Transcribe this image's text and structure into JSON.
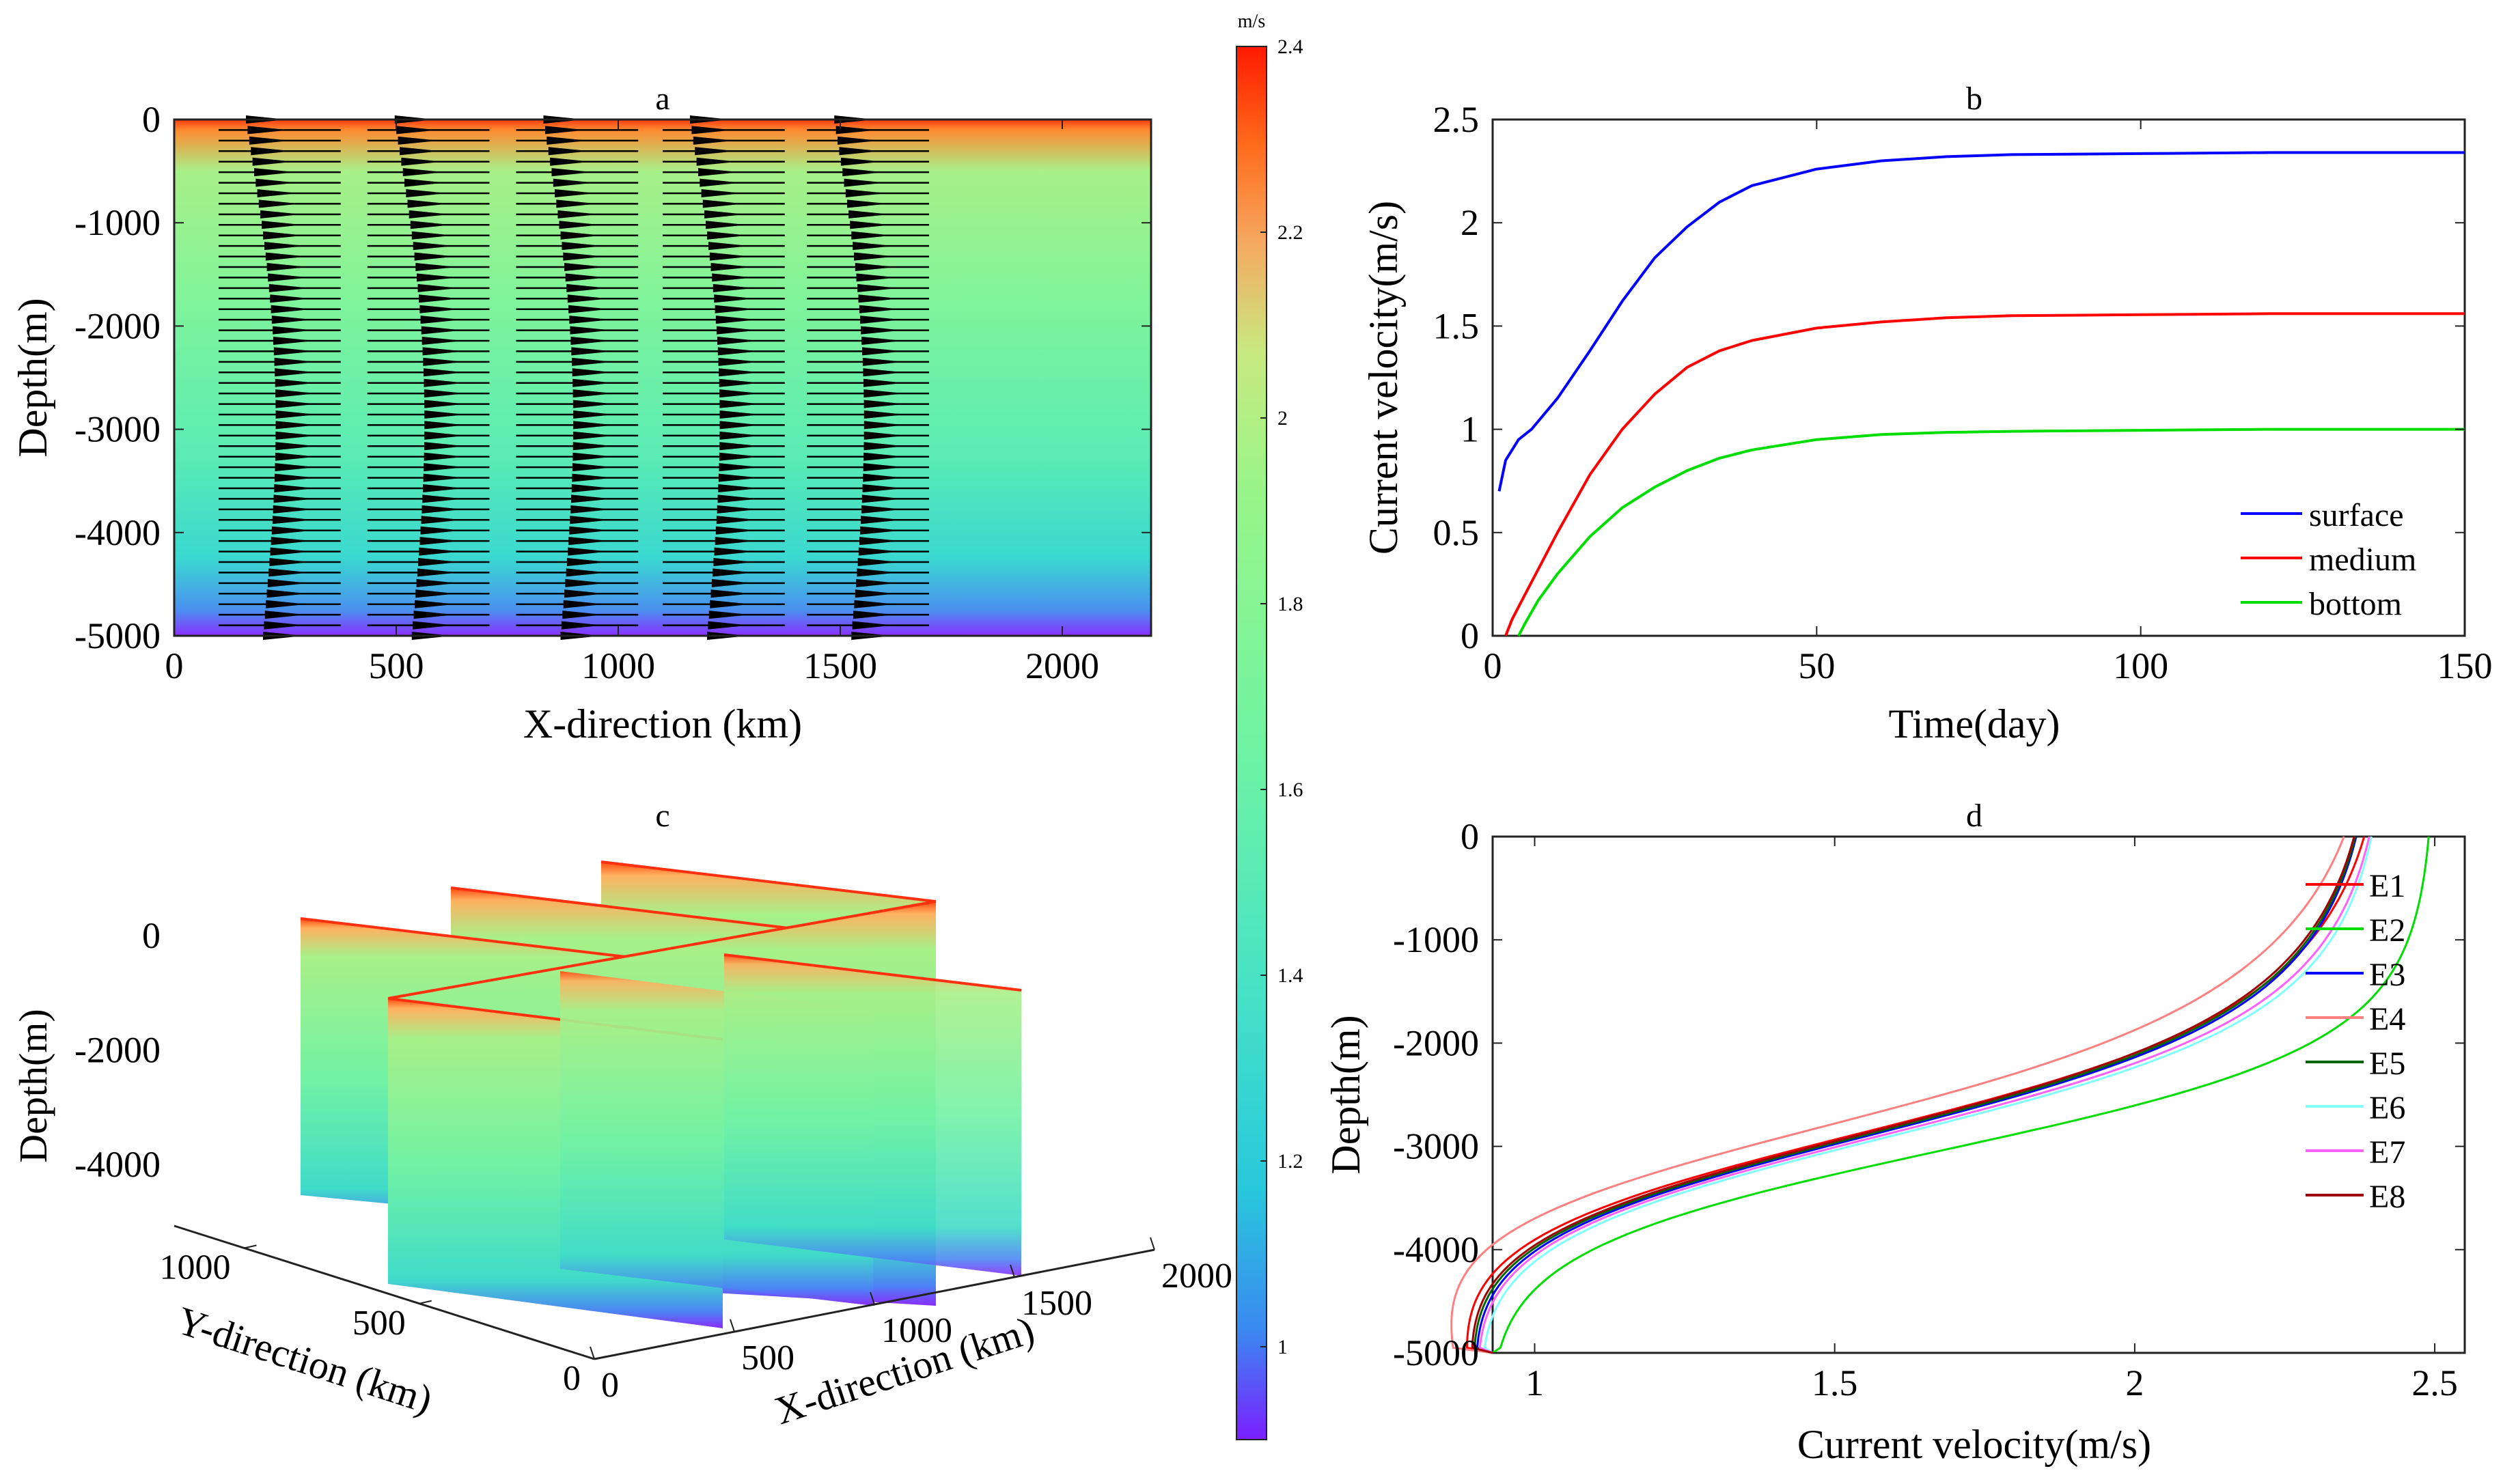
{
  "colorbar": {
    "unit": "m/s",
    "min": 0.9,
    "max": 2.4,
    "ticks": [
      1,
      1.2,
      1.4,
      1.6,
      1.8,
      2,
      2.2,
      2.4
    ],
    "tick_labels": [
      "1",
      "1.2",
      "1.4",
      "1.6",
      "1.8",
      "2",
      "2.2",
      "2.4"
    ]
  },
  "chart_data": [
    {
      "id": "a",
      "type": "heatmap",
      "title": "a",
      "xlabel": "X-direction (km)",
      "ylabel": "Depth(m)",
      "xlim": [
        0,
        2200
      ],
      "ylim": [
        -5000,
        0
      ],
      "xticks": [
        0,
        500,
        1000,
        1500,
        2000
      ],
      "xtick_labels": [
        "0",
        "500",
        "1000",
        "1500",
        "2000"
      ],
      "yticks": [
        0,
        -1000,
        -2000,
        -3000,
        -4000,
        -5000
      ],
      "ytick_labels": [
        "0",
        "-1000",
        "-2000",
        "-3000",
        "-4000",
        "-5000"
      ],
      "field": "current velocity (m/s) vs depth",
      "profile_depths": [
        0,
        -250,
        -500,
        -1000,
        -1500,
        -2000,
        -2500,
        -3000,
        -3500,
        -4000,
        -4500,
        -4750,
        -5000
      ],
      "profile_values": [
        2.4,
        2.05,
        1.85,
        1.75,
        1.7,
        1.66,
        1.62,
        1.56,
        1.5,
        1.42,
        1.32,
        1.2,
        0.92
      ],
      "arrow_columns_x": [
        100,
        435,
        770,
        1100,
        1425
      ],
      "arrow_column_length_km": 275,
      "arrow_count_per_column": 50
    },
    {
      "id": "b",
      "type": "line",
      "title": "b",
      "xlabel": "Time(day)",
      "ylabel": "Current velocity(m/s)",
      "xlim": [
        0,
        150
      ],
      "ylim": [
        0,
        2.5
      ],
      "xticks": [
        0,
        50,
        100,
        150
      ],
      "xtick_labels": [
        "0",
        "50",
        "100",
        "150"
      ],
      "yticks": [
        0,
        0.5,
        1,
        1.5,
        2,
        2.5
      ],
      "ytick_labels": [
        "0",
        "0.5",
        "1",
        "1.5",
        "2",
        "2.5"
      ],
      "legend_position": "bottom-right",
      "series": [
        {
          "name": "surface",
          "color": "#0000ff",
          "x": [
            1,
            2,
            4,
            6,
            10,
            15,
            20,
            25,
            30,
            35,
            40,
            50,
            60,
            70,
            80,
            100,
            120,
            150
          ],
          "values": [
            0.7,
            0.85,
            0.95,
            1.0,
            1.15,
            1.38,
            1.62,
            1.83,
            1.98,
            2.1,
            2.18,
            2.26,
            2.3,
            2.32,
            2.33,
            2.335,
            2.34,
            2.34
          ]
        },
        {
          "name": "medium",
          "color": "#ff0000",
          "x": [
            2,
            3,
            5,
            10,
            15,
            20,
            25,
            30,
            35,
            40,
            50,
            60,
            70,
            80,
            100,
            120,
            150
          ],
          "values": [
            0,
            0.08,
            0.2,
            0.5,
            0.78,
            1.0,
            1.17,
            1.3,
            1.38,
            1.43,
            1.49,
            1.52,
            1.54,
            1.55,
            1.555,
            1.56,
            1.56
          ]
        },
        {
          "name": "bottom",
          "color": "#00dd00",
          "x": [
            4,
            5,
            7,
            10,
            15,
            20,
            25,
            30,
            35,
            40,
            50,
            60,
            70,
            80,
            100,
            120,
            150
          ],
          "values": [
            0,
            0.06,
            0.17,
            0.3,
            0.48,
            0.62,
            0.72,
            0.8,
            0.86,
            0.9,
            0.95,
            0.975,
            0.985,
            0.99,
            0.995,
            1.0,
            1.0
          ]
        }
      ]
    },
    {
      "id": "c",
      "type": "heatmap",
      "title": "c",
      "projection": "3d-slices",
      "xlabel": "X-direction (km)",
      "ylabel": "Y-direction (km)",
      "zlabel": "Depth(m)",
      "xlim": [
        0,
        2000
      ],
      "ylim": [
        0,
        1200
      ],
      "zlim": [
        -5000,
        0
      ],
      "xticks": [
        0,
        500,
        1000,
        1500,
        2000
      ],
      "xtick_labels": [
        "0",
        "500",
        "1000",
        "1500",
        "2000"
      ],
      "yticks": [
        0,
        500,
        1000
      ],
      "ytick_labels": [
        "0",
        "500",
        "1000"
      ],
      "zticks": [
        0,
        -2000,
        -4000
      ],
      "ztick_labels": [
        "0",
        "-2000",
        "-4000"
      ],
      "slices": [
        {
          "orientation": "x",
          "position": 500
        },
        {
          "orientation": "x",
          "position": 1000
        },
        {
          "orientation": "x",
          "position": 1500
        },
        {
          "orientation": "y",
          "position": 600
        }
      ]
    },
    {
      "id": "d",
      "type": "line",
      "title": "d",
      "xlabel": "Current velocity(m/s)",
      "ylabel": "Depth(m)",
      "xlim": [
        0.93,
        2.55
      ],
      "ylim": [
        -5000,
        0
      ],
      "xticks": [
        1,
        1.5,
        2,
        2.5
      ],
      "xtick_labels": [
        "1",
        "1.5",
        "2",
        "2.5"
      ],
      "yticks": [
        0,
        -1000,
        -2000,
        -3000,
        -4000,
        -5000
      ],
      "ytick_labels": [
        "0",
        "-1000",
        "-2000",
        "-3000",
        "-4000",
        "-5000"
      ],
      "legend_position": "top-right",
      "series": [
        {
          "name": "E1",
          "color": "#ff0000",
          "low": 0.93,
          "high": 2.42,
          "mid_depth": -2950,
          "mid_v": 1.49,
          "scale": 550
        },
        {
          "name": "E2",
          "color": "#00dd00",
          "low": 0.93,
          "high": 2.5,
          "mid_depth": -3050,
          "mid_v": 1.67,
          "scale": 500
        },
        {
          "name": "E3",
          "color": "#0000ff",
          "low": 0.93,
          "high": 2.4,
          "mid_depth": -2950,
          "mid_v": 1.52,
          "scale": 550
        },
        {
          "name": "E4",
          "color": "#ff8080",
          "low": 0.93,
          "high": 2.4,
          "mid_depth": -2900,
          "mid_v": 1.42,
          "scale": 560
        },
        {
          "name": "E5",
          "color": "#006400",
          "low": 0.93,
          "high": 2.4,
          "mid_depth": -2950,
          "mid_v": 1.51,
          "scale": 550
        },
        {
          "name": "E6",
          "color": "#80ffff",
          "low": 0.93,
          "high": 2.42,
          "mid_depth": -2950,
          "mid_v": 1.56,
          "scale": 545
        },
        {
          "name": "E7",
          "color": "#ff60ff",
          "low": 0.93,
          "high": 2.42,
          "mid_depth": -2950,
          "mid_v": 1.54,
          "scale": 548
        },
        {
          "name": "E8",
          "color": "#a00000",
          "low": 0.93,
          "high": 2.4,
          "mid_depth": -2950,
          "mid_v": 1.5,
          "scale": 552
        }
      ]
    }
  ]
}
